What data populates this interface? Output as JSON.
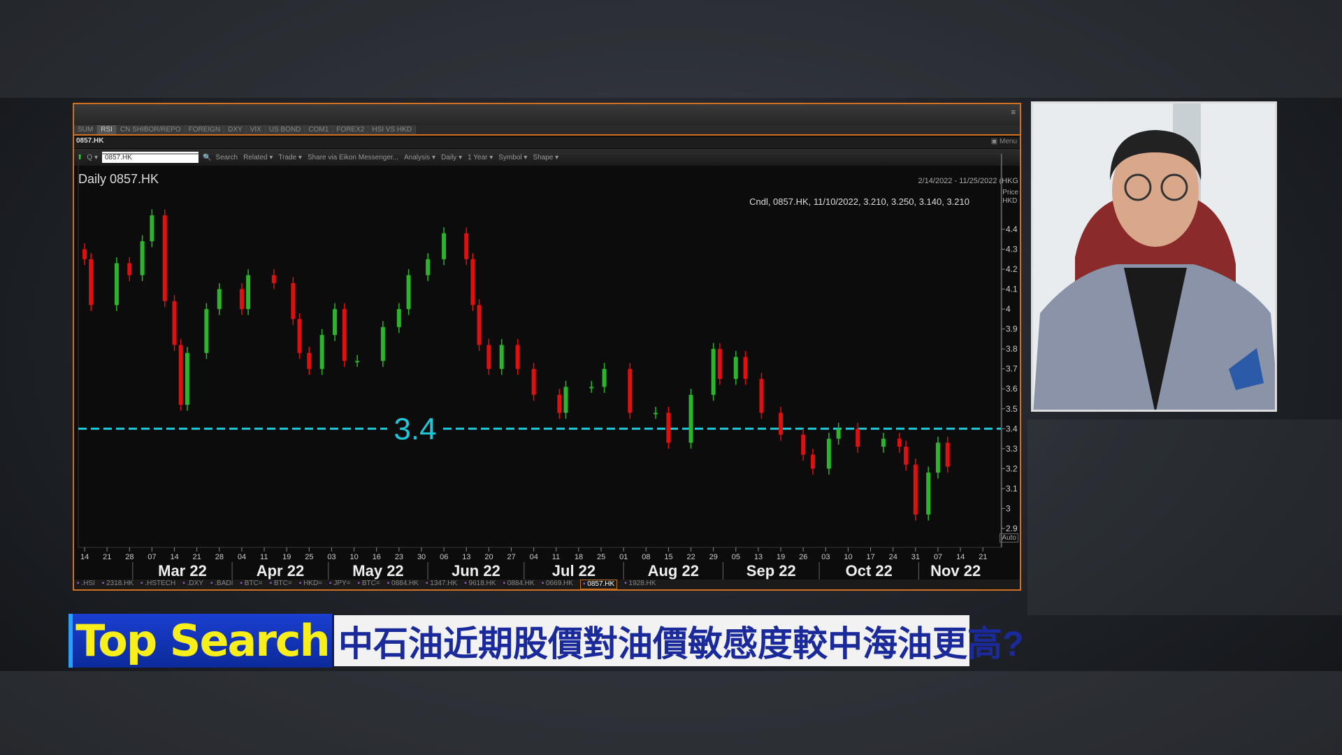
{
  "window": {
    "tabs": [
      "SUM",
      "RSI",
      "CN SHIBOR/REPO",
      "FOREIGN",
      "DXY",
      "VIX",
      "US BOND",
      "COM1",
      "FOREX2",
      "HSI VS HKD"
    ],
    "active_tab": "RSI",
    "ric_title": "0857.HK",
    "ric_input": "0857.HK",
    "menu_label": "Menu",
    "toolbar": [
      "Search",
      "Related ▾",
      "Trade ▾",
      "Share via Eikon Messenger...",
      "Analysis ▾",
      "Daily ▾",
      "1 Year ▾",
      "Symbol ▾",
      "Shape ▾"
    ],
    "chart_title": "Daily 0857.HK",
    "date_range": "2/14/2022 - 11/25/2022 (HKG",
    "price_label": "Price",
    "currency_label": "HKD",
    "auto_label": "Auto",
    "cndl_readout": "Cndl, 0857.HK, 11/10/2022, 3.210, 3.250, 3.140, 3.210",
    "bottom_symbols": [
      ".HSI",
      "2318.HK",
      ".HSTECH",
      ".DXY",
      ".BADI",
      "BTC=",
      "BTC=",
      "HKD=",
      "JPY=",
      "BTC=",
      "0884.HK",
      "1347.HK",
      "9618.HK",
      "0884.HK",
      "0669.HK",
      "0857.HK",
      "1928.HK"
    ],
    "active_symbol": "0857.HK"
  },
  "chart_data": {
    "type": "candlestick",
    "ylim": [
      2.9,
      4.4
    ],
    "yticks": [
      "4.4",
      "4.3",
      "4.2",
      "4.1",
      "4",
      "3.9",
      "3.8",
      "3.7",
      "3.6",
      "3.5",
      "3.4",
      "3.3",
      "3.2",
      "3.1",
      "3",
      "2.9"
    ],
    "xtick_labels": [
      "14",
      "21",
      "28",
      "07",
      "14",
      "21",
      "28",
      "04",
      "11",
      "19",
      "25",
      "03",
      "10",
      "16",
      "23",
      "30",
      "06",
      "13",
      "20",
      "27",
      "04",
      "11",
      "18",
      "25",
      "01",
      "08",
      "15",
      "22",
      "29",
      "05",
      "13",
      "19",
      "26",
      "03",
      "10",
      "17",
      "24",
      "31",
      "07",
      "14",
      "21"
    ],
    "month_labels": [
      "Mar 22",
      "Apr 22",
      "May 22",
      "Jun 22",
      "Jul 22",
      "Aug 22",
      "Sep 22",
      "Oct 22",
      "Nov 22"
    ],
    "up_color": "#2bb52b",
    "down_color": "#e01010",
    "hline": {
      "value": 3.4,
      "label": "3.4",
      "color": "#1ec8d8"
    },
    "closes": [
      [
        "2022-02-14",
        4.25
      ],
      [
        "2022-02-16",
        4.02
      ],
      [
        "2022-02-24",
        4.23
      ],
      [
        "2022-02-28",
        4.17
      ],
      [
        "2022-03-04",
        4.34
      ],
      [
        "2022-03-07",
        4.47
      ],
      [
        "2022-03-11",
        4.04
      ],
      [
        "2022-03-14",
        3.82
      ],
      [
        "2022-03-16",
        3.52
      ],
      [
        "2022-03-18",
        3.78
      ],
      [
        "2022-03-24",
        4.0
      ],
      [
        "2022-03-28",
        4.1
      ],
      [
        "2022-04-04",
        4.0
      ],
      [
        "2022-04-06",
        4.17
      ],
      [
        "2022-04-14",
        4.13
      ],
      [
        "2022-04-20",
        3.95
      ],
      [
        "2022-04-22",
        3.78
      ],
      [
        "2022-04-25",
        3.7
      ],
      [
        "2022-04-29",
        3.87
      ],
      [
        "2022-05-03",
        4.0
      ],
      [
        "2022-05-06",
        3.74
      ],
      [
        "2022-05-10",
        3.74
      ],
      [
        "2022-05-18",
        3.91
      ],
      [
        "2022-05-23",
        4.0
      ],
      [
        "2022-05-26",
        4.17
      ],
      [
        "2022-06-01",
        4.25
      ],
      [
        "2022-06-06",
        4.38
      ],
      [
        "2022-06-13",
        4.25
      ],
      [
        "2022-06-15",
        4.02
      ],
      [
        "2022-06-17",
        3.82
      ],
      [
        "2022-06-20",
        3.7
      ],
      [
        "2022-06-24",
        3.82
      ],
      [
        "2022-06-29",
        3.7
      ],
      [
        "2022-07-04",
        3.57
      ],
      [
        "2022-07-12",
        3.48
      ],
      [
        "2022-07-14",
        3.61
      ],
      [
        "2022-07-22",
        3.61
      ],
      [
        "2022-07-26",
        3.7
      ],
      [
        "2022-08-03",
        3.48
      ],
      [
        "2022-08-11",
        3.48
      ],
      [
        "2022-08-15",
        3.33
      ],
      [
        "2022-08-22",
        3.57
      ],
      [
        "2022-08-29",
        3.8
      ],
      [
        "2022-08-31",
        3.65
      ],
      [
        "2022-09-05",
        3.76
      ],
      [
        "2022-09-08",
        3.65
      ],
      [
        "2022-09-13",
        3.48
      ],
      [
        "2022-09-19",
        3.37
      ],
      [
        "2022-09-26",
        3.27
      ],
      [
        "2022-09-29",
        3.2
      ],
      [
        "2022-10-04",
        3.35
      ],
      [
        "2022-10-07",
        3.4
      ],
      [
        "2022-10-13",
        3.31
      ],
      [
        "2022-10-21",
        3.35
      ],
      [
        "2022-10-26",
        3.31
      ],
      [
        "2022-10-28",
        3.22
      ],
      [
        "2022-10-31",
        2.97
      ],
      [
        "2022-11-04",
        3.18
      ],
      [
        "2022-11-07",
        3.33
      ],
      [
        "2022-11-10",
        3.21
      ]
    ]
  },
  "banner": {
    "tag": "Top Search",
    "headline": "中石油近期股價對油價敏感度較中海油更高?"
  }
}
